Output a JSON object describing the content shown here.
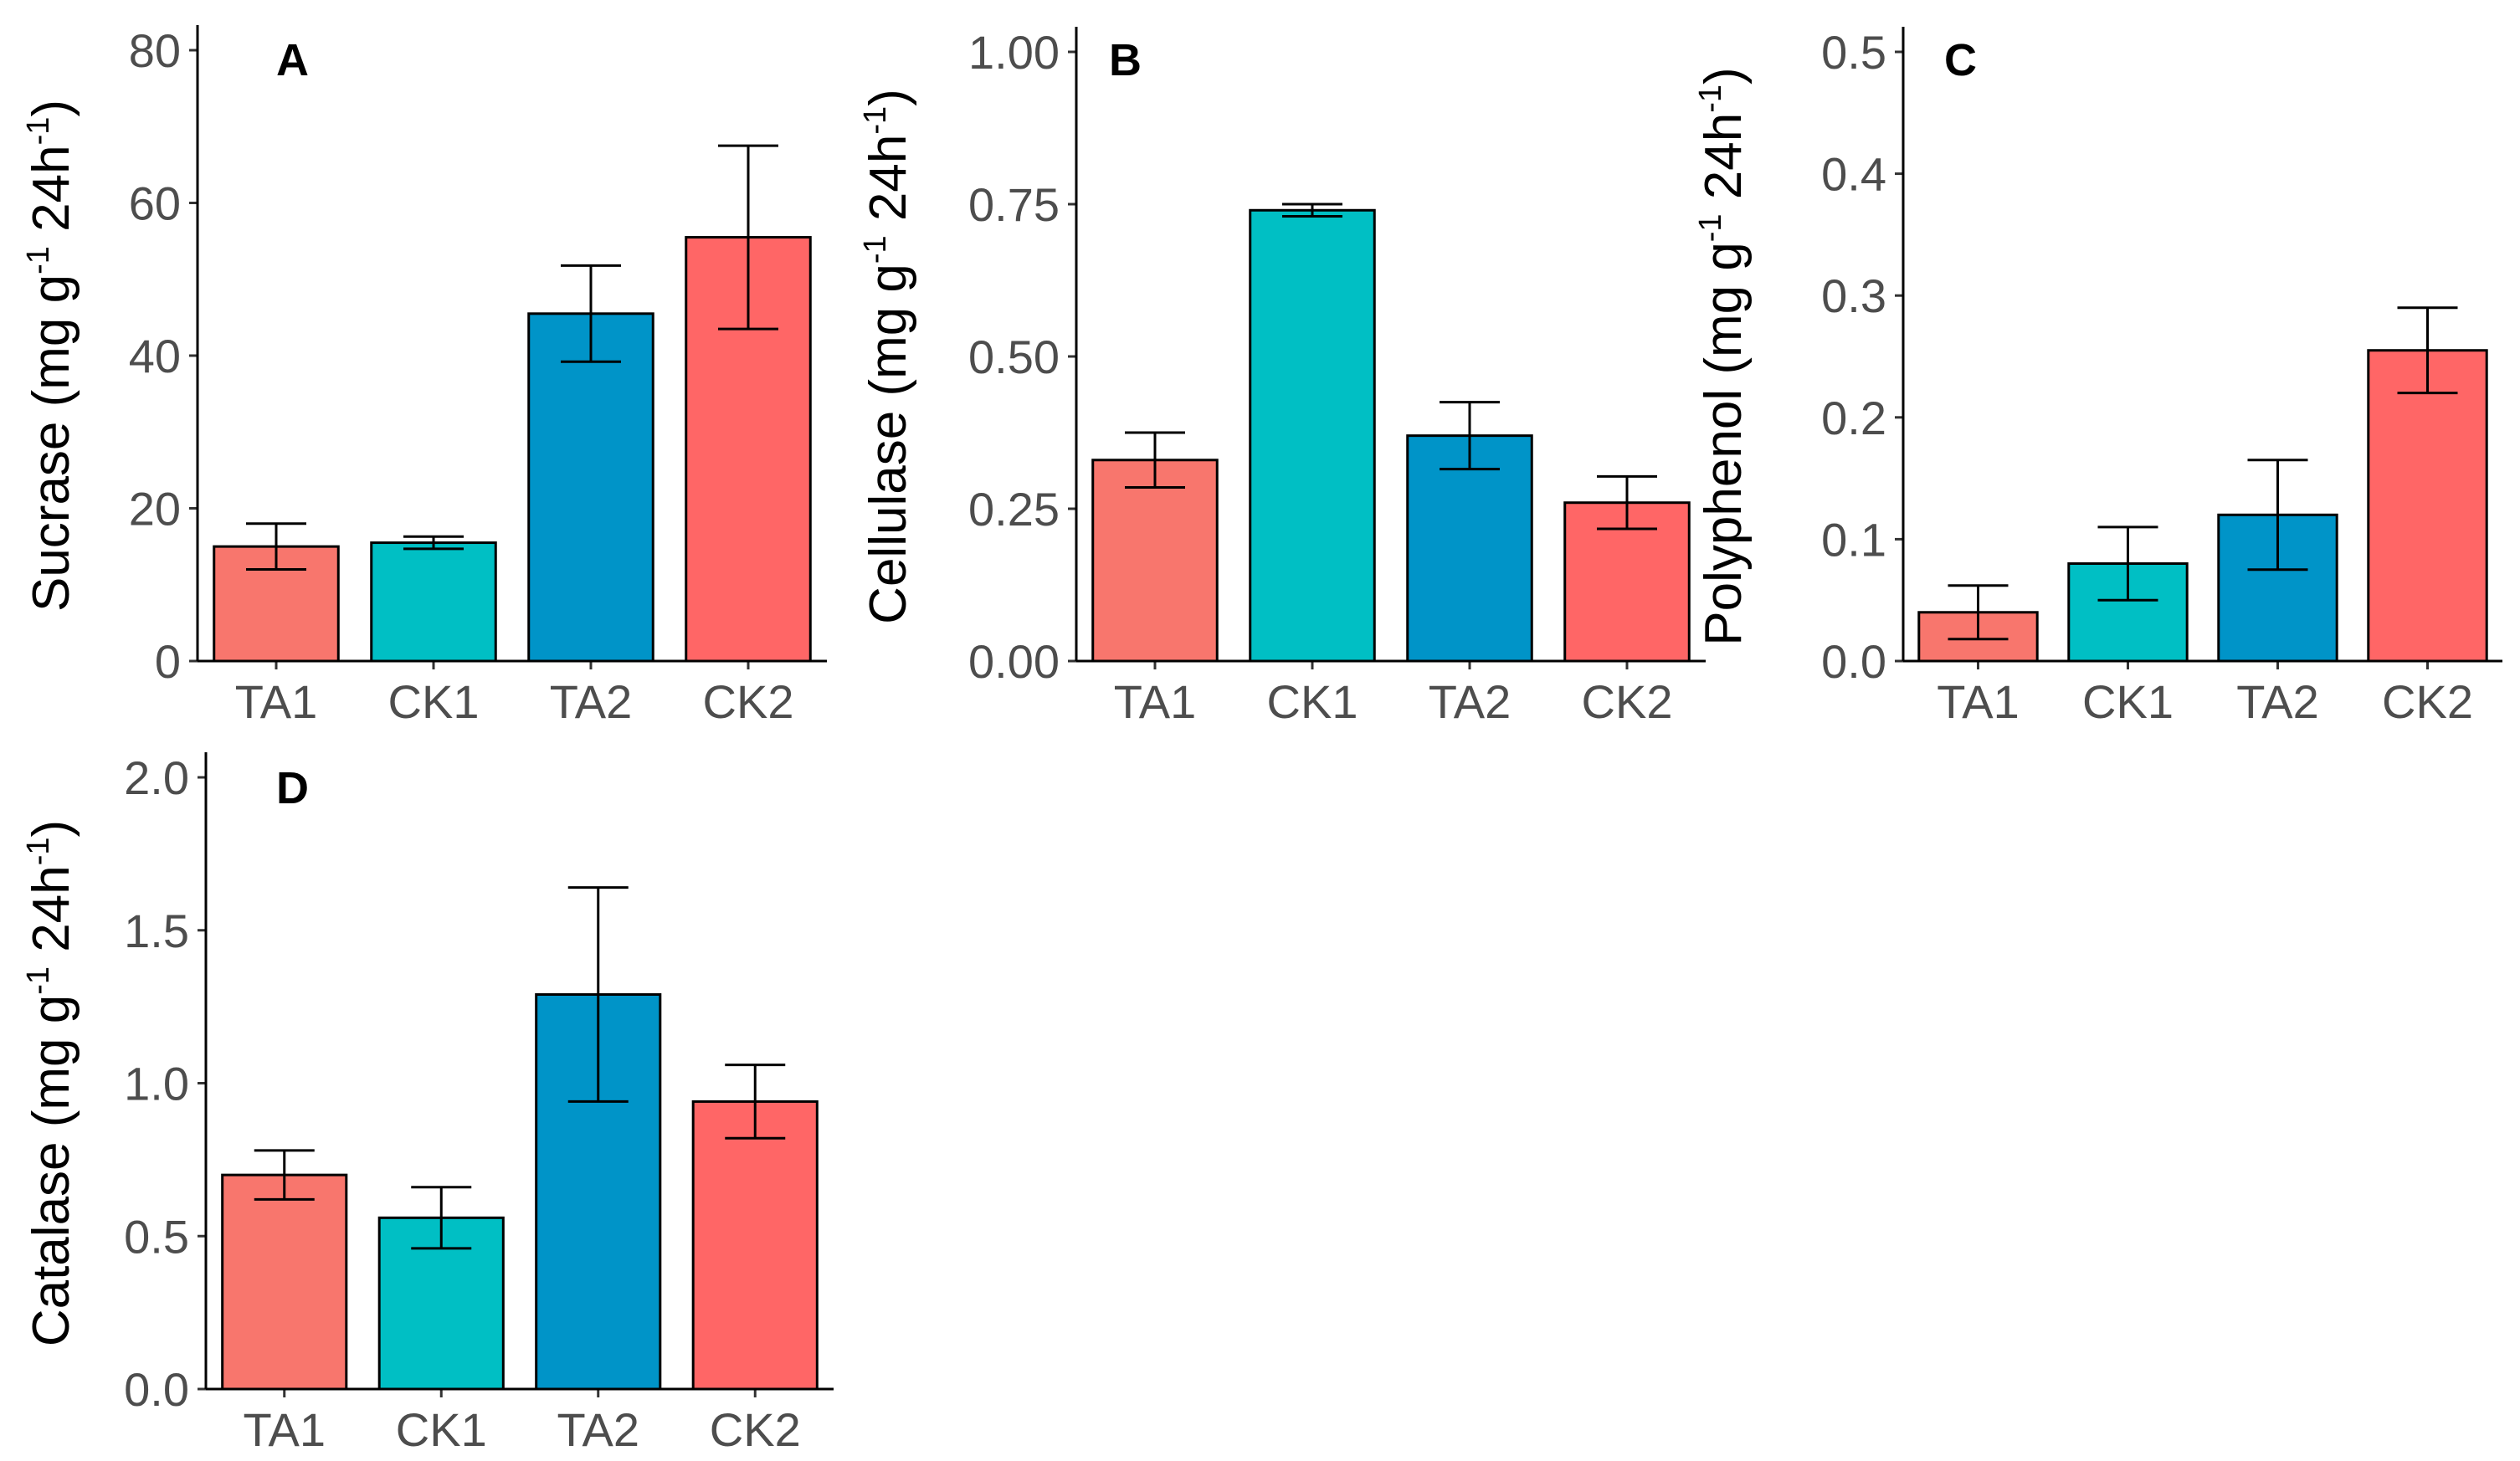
{
  "figure": {
    "colors": {
      "TA1": "#f8766d",
      "CK1": "#00bfc4",
      "TA2": "#0094c8",
      "CK2": "#ff6666"
    }
  },
  "chart_data": [
    {
      "type": "bar",
      "panel": "A",
      "categories": [
        "TA1",
        "CK1",
        "TA2",
        "CK2"
      ],
      "values": [
        15,
        15.5,
        45.5,
        55.5
      ],
      "error": [
        3,
        0.8,
        6.3,
        12
      ],
      "ylim": [
        0,
        80
      ],
      "yticks": [
        "0",
        "20",
        "40",
        "60",
        "80"
      ],
      "ylabel": {
        "main": "Sucrase (mg g",
        "sup1": "-1",
        "mid": " 24h",
        "sup2": "-1",
        "end": ")"
      }
    },
    {
      "type": "bar",
      "panel": "B",
      "categories": [
        "TA1",
        "CK1",
        "TA2",
        "CK2"
      ],
      "values": [
        0.33,
        0.74,
        0.37,
        0.26
      ],
      "error": [
        0.045,
        0.01,
        0.055,
        0.043
      ],
      "ylim": [
        0,
        1
      ],
      "yticks": [
        "0.00",
        "0.25",
        "0.50",
        "0.75",
        "1.00"
      ],
      "ylabel": {
        "main": "Cellulase (mg g",
        "sup1": "-1",
        "mid": " 24h",
        "sup2": "-1",
        "end": ")"
      }
    },
    {
      "type": "bar",
      "panel": "C",
      "categories": [
        "TA1",
        "CK1",
        "TA2",
        "CK2"
      ],
      "values": [
        0.04,
        0.08,
        0.12,
        0.255
      ],
      "error": [
        0.022,
        0.03,
        0.045,
        0.035
      ],
      "ylim": [
        0,
        0.5
      ],
      "yticks": [
        "0.0",
        "0.1",
        "0.2",
        "0.3",
        "0.4",
        "0.5"
      ],
      "ylabel": {
        "main": "Polyphenol (mg g",
        "sup1": "-1",
        "mid": " 24h",
        "sup2": "-1",
        "end": ")"
      }
    },
    {
      "type": "bar",
      "panel": "D",
      "categories": [
        "TA1",
        "CK1",
        "TA2",
        "CK2"
      ],
      "values": [
        0.7,
        0.56,
        1.29,
        0.94
      ],
      "error": [
        0.08,
        0.1,
        0.35,
        0.12
      ],
      "ylim": [
        0,
        2
      ],
      "yticks": [
        "0.0",
        "0.5",
        "1.0",
        "1.5",
        "2.0"
      ],
      "ylabel": {
        "main": "Catalase (mg g",
        "sup1": "-1",
        "mid": " 24h",
        "sup2": "-1",
        "end": ")"
      }
    }
  ]
}
